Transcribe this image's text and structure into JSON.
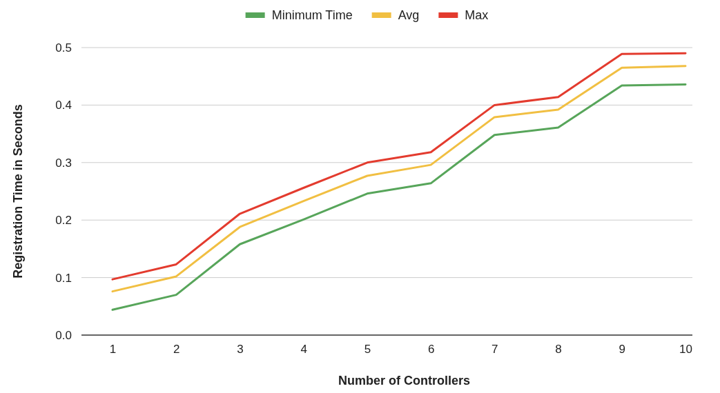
{
  "chart_data": {
    "type": "line",
    "xlabel": "Number of Controllers",
    "ylabel": "Registration Time in Seconds",
    "categories": [
      "1",
      "2",
      "3",
      "4",
      "5",
      "6",
      "7",
      "8",
      "9",
      "10"
    ],
    "series": [
      {
        "name": "Minimum Time",
        "color": "#57a55a",
        "values": [
          0.044,
          0.07,
          0.158,
          0.201,
          0.246,
          0.264,
          0.348,
          0.361,
          0.434,
          0.436
        ]
      },
      {
        "name": "Avg",
        "color": "#f1bf42",
        "values": [
          0.076,
          0.102,
          0.188,
          0.233,
          0.277,
          0.296,
          0.379,
          0.392,
          0.465,
          0.468
        ]
      },
      {
        "name": "Max",
        "color": "#e33b2e",
        "values": [
          0.097,
          0.123,
          0.211,
          0.256,
          0.3,
          0.318,
          0.4,
          0.414,
          0.489,
          0.49
        ]
      }
    ],
    "ylim": [
      0,
      0.5
    ],
    "yticks": [
      {
        "value": 0,
        "label": "0.0"
      },
      0.1,
      0.2,
      0.3,
      0.4,
      0.5
    ],
    "grid": "y",
    "legend": "top",
    "marker": "none",
    "line_style": "solid"
  }
}
